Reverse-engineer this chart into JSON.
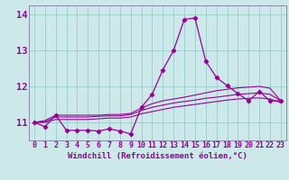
{
  "xlabel": "Windchill (Refroidissement éolien,°C)",
  "bg_color": "#cce8e8",
  "grid_color": "#99cccc",
  "line_color": "#990099",
  "spine_color": "#8888aa",
  "hours": [
    0,
    1,
    2,
    3,
    4,
    5,
    6,
    7,
    8,
    9,
    10,
    11,
    12,
    13,
    14,
    15,
    16,
    17,
    18,
    19,
    20,
    21,
    22,
    23
  ],
  "line1": [
    11.0,
    10.88,
    11.2,
    10.78,
    10.78,
    10.78,
    10.76,
    10.82,
    10.76,
    10.68,
    11.42,
    11.78,
    12.46,
    13.0,
    13.86,
    13.9,
    12.7,
    12.25,
    12.02,
    11.8,
    11.6,
    11.86,
    11.6,
    11.6
  ],
  "line2": [
    11.0,
    11.05,
    11.2,
    11.2,
    11.2,
    11.2,
    11.2,
    11.22,
    11.22,
    11.25,
    11.4,
    11.52,
    11.6,
    11.65,
    11.7,
    11.76,
    11.82,
    11.88,
    11.92,
    11.96,
    11.98,
    12.0,
    11.95,
    11.6
  ],
  "line3": [
    11.0,
    11.02,
    11.15,
    11.15,
    11.15,
    11.15,
    11.17,
    11.18,
    11.18,
    11.22,
    11.33,
    11.42,
    11.48,
    11.54,
    11.58,
    11.62,
    11.67,
    11.7,
    11.74,
    11.78,
    11.8,
    11.82,
    11.78,
    11.6
  ],
  "line4": [
    11.0,
    11.0,
    11.08,
    11.08,
    11.08,
    11.08,
    11.1,
    11.12,
    11.12,
    11.15,
    11.24,
    11.3,
    11.36,
    11.42,
    11.46,
    11.5,
    11.54,
    11.58,
    11.62,
    11.65,
    11.67,
    11.68,
    11.65,
    11.55
  ],
  "ylim": [
    10.5,
    14.25
  ],
  "yticks": [
    11,
    12,
    13,
    14
  ],
  "tick_color": "#990099",
  "label_fontsize": 6.0,
  "xlabel_fontsize": 6.5
}
